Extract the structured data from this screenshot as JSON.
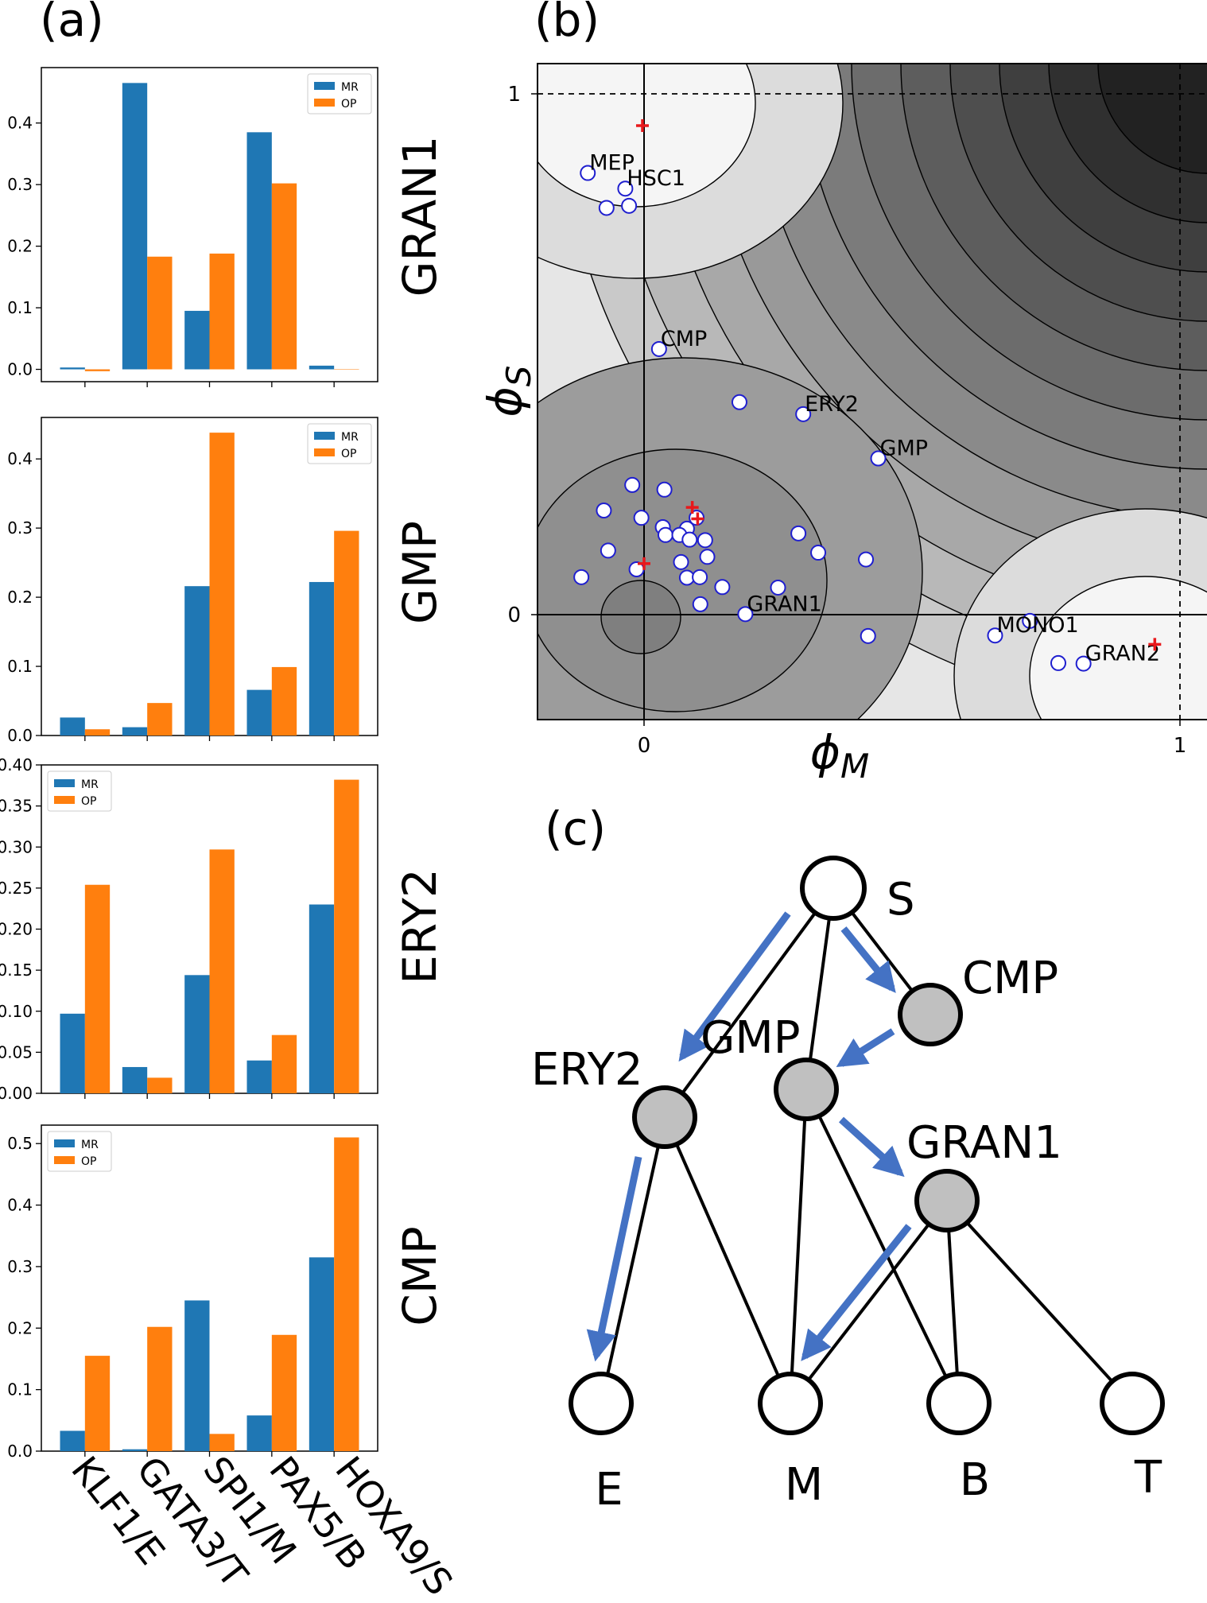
{
  "panel_labels": {
    "a": "(a)",
    "b": "(b)",
    "c": "(c)"
  },
  "colors": {
    "MR": "#1f77b4",
    "OP": "#ff7f0e",
    "arrow": "#4472c4",
    "marker": "#e8191c",
    "node_fill": "#c0c0c0"
  },
  "chart_data": [
    {
      "type": "bar",
      "panel": "a",
      "row_label": "GRAN1",
      "categories": [
        "KLF1/E",
        "GATA3/T",
        "SPI1/M",
        "PAX5/B",
        "HOXA9/S"
      ],
      "series": [
        {
          "name": "MR",
          "values": [
            0.003,
            0.465,
            0.095,
            0.385,
            0.006
          ]
        },
        {
          "name": "OP",
          "values": [
            -0.003,
            0.183,
            0.188,
            0.302,
            0.0
          ]
        }
      ],
      "ylim": [
        -0.02,
        0.49
      ],
      "yticks": [
        0.0,
        0.1,
        0.2,
        0.3,
        0.4
      ],
      "ytick_labels": [
        "0.0",
        "0.1",
        "0.2",
        "0.3",
        "0.4"
      ],
      "legend": "top-right"
    },
    {
      "type": "bar",
      "panel": "a",
      "row_label": "GMP",
      "categories": [
        "KLF1/E",
        "GATA3/T",
        "SPI1/M",
        "PAX5/B",
        "HOXA9/S"
      ],
      "series": [
        {
          "name": "MR",
          "values": [
            0.026,
            0.012,
            0.216,
            0.066,
            0.222
          ]
        },
        {
          "name": "OP",
          "values": [
            0.009,
            0.047,
            0.438,
            0.099,
            0.296
          ]
        }
      ],
      "ylim": [
        0.0,
        0.46
      ],
      "yticks": [
        0.0,
        0.1,
        0.2,
        0.3,
        0.4
      ],
      "ytick_labels": [
        "0.0",
        "0.1",
        "0.2",
        "0.3",
        "0.4"
      ],
      "legend": "top-right"
    },
    {
      "type": "bar",
      "panel": "a",
      "row_label": "ERY2",
      "categories": [
        "KLF1/E",
        "GATA3/T",
        "SPI1/M",
        "PAX5/B",
        "HOXA9/S"
      ],
      "series": [
        {
          "name": "MR",
          "values": [
            0.097,
            0.032,
            0.144,
            0.04,
            0.23
          ]
        },
        {
          "name": "OP",
          "values": [
            0.254,
            0.019,
            0.297,
            0.071,
            0.382
          ]
        }
      ],
      "ylim": [
        0.0,
        0.4
      ],
      "yticks": [
        0.0,
        0.05,
        0.1,
        0.15,
        0.2,
        0.25,
        0.3,
        0.35,
        0.4
      ],
      "ytick_labels": [
        "0.00",
        "0.05",
        "0.10",
        "0.15",
        "0.20",
        "0.25",
        "0.30",
        "0.35",
        "0.40"
      ],
      "legend": "top-left"
    },
    {
      "type": "bar",
      "panel": "a",
      "row_label": "CMP",
      "categories": [
        "KLF1/E",
        "GATA3/T",
        "SPI1/M",
        "PAX5/B",
        "HOXA9/S"
      ],
      "series": [
        {
          "name": "MR",
          "values": [
            0.033,
            0.003,
            0.245,
            0.058,
            0.315
          ]
        },
        {
          "name": "OP",
          "values": [
            0.155,
            0.202,
            0.028,
            0.189,
            0.51
          ]
        }
      ],
      "ylim": [
        0.0,
        0.53
      ],
      "yticks": [
        0.0,
        0.1,
        0.2,
        0.3,
        0.4,
        0.5
      ],
      "ytick_labels": [
        "0.0",
        "0.1",
        "0.2",
        "0.3",
        "0.4",
        "0.5"
      ],
      "legend": "top-left"
    },
    {
      "type": "scatter",
      "panel": "b",
      "xlabel": "ϕM",
      "ylabel": "ϕS",
      "xlim": [
        -0.2,
        1.05
      ],
      "ylim": [
        -0.2,
        1.07
      ],
      "xticks": [
        0,
        1
      ],
      "yticks": [
        0,
        1
      ],
      "background": "contour landscape",
      "labeled_points": [
        {
          "label": "MEP",
          "x": -0.105,
          "y": 0.848
        },
        {
          "label": "HSC1",
          "x": -0.035,
          "y": 0.818
        },
        {
          "label": "CMP",
          "x": 0.028,
          "y": 0.51
        },
        {
          "label": "ERY2",
          "x": 0.297,
          "y": 0.385
        },
        {
          "label": "GMP",
          "x": 0.437,
          "y": 0.3
        },
        {
          "label": "GRAN1",
          "x": 0.189,
          "y": 0.001
        },
        {
          "label": "MONO1",
          "x": 0.655,
          "y": -0.04
        },
        {
          "label": "GRAN2",
          "x": 0.82,
          "y": -0.094
        }
      ],
      "other_points": [
        [
          -0.07,
          0.781
        ],
        [
          -0.028,
          0.785
        ],
        [
          0.178,
          0.408
        ],
        [
          -0.022,
          0.249
        ],
        [
          0.038,
          0.24
        ],
        [
          -0.075,
          0.2
        ],
        [
          -0.005,
          0.186
        ],
        [
          0.098,
          0.186
        ],
        [
          0.035,
          0.168
        ],
        [
          0.08,
          0.165
        ],
        [
          0.04,
          0.153
        ],
        [
          0.066,
          0.153
        ],
        [
          0.085,
          0.144
        ],
        [
          0.114,
          0.143
        ],
        [
          0.288,
          0.156
        ],
        [
          -0.067,
          0.123
        ],
        [
          0.325,
          0.119
        ],
        [
          0.118,
          0.111
        ],
        [
          0.069,
          0.101
        ],
        [
          0.414,
          0.106
        ],
        [
          -0.014,
          0.087
        ],
        [
          -0.117,
          0.072
        ],
        [
          0.08,
          0.071
        ],
        [
          0.104,
          0.072
        ],
        [
          0.146,
          0.053
        ],
        [
          0.25,
          0.052
        ],
        [
          0.105,
          0.02
        ],
        [
          0.418,
          -0.041
        ],
        [
          0.72,
          -0.012
        ],
        [
          0.773,
          -0.093
        ]
      ],
      "cross_markers": [
        [
          -0.003,
          0.939
        ],
        [
          0.09,
          0.206
        ],
        [
          0.1,
          0.184
        ],
        [
          0.0,
          0.098
        ],
        [
          0.953,
          -0.057
        ]
      ]
    }
  ],
  "labels_a": {
    "legend_mr": "MR",
    "legend_op": "OP",
    "row1": "GRAN1",
    "row2": "GMP",
    "row3": "ERY2",
    "row4": "CMP",
    "x1": "KLF1/E",
    "x2": "GATA3/T",
    "x3": "SPI1/M",
    "x4": "PAX5/B",
    "x5": "HOXA9/S"
  },
  "labels_b": {
    "x0": "0",
    "x1": "1",
    "y0": "0",
    "y1": "1",
    "xlabel_main": "ϕ",
    "xlabel_sub": "M",
    "ylabel_main": "ϕ",
    "ylabel_sub": "S"
  },
  "diagram_c": {
    "nodes": {
      "S": "S",
      "CMP": "CMP",
      "GMP": "GMP",
      "ERY2": "ERY2",
      "GRAN1": "GRAN1",
      "E": "E",
      "M": "M",
      "B": "B",
      "T": "T"
    }
  }
}
